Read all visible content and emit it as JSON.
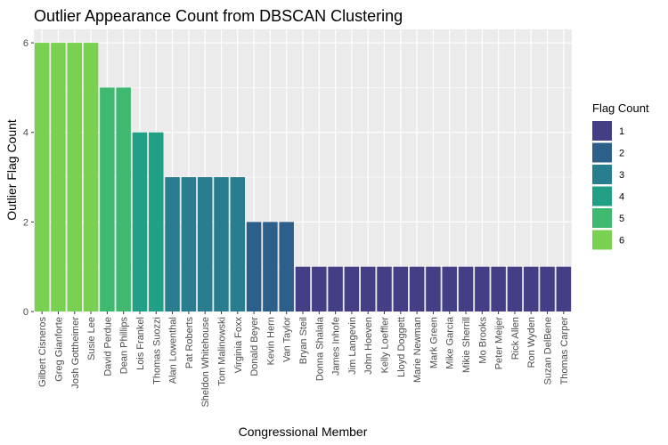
{
  "chart_data": {
    "type": "bar",
    "title": "Outlier Appearance Count from DBSCAN Clustering",
    "xlabel": "Congressional Member",
    "ylabel": "Outlier Flag Count",
    "ylim": [
      0,
      6.3
    ],
    "yticks": [
      0,
      2,
      4,
      6
    ],
    "grid": true,
    "legend_position": "right",
    "categories": [
      "Gilbert Cisneros",
      "Greg Gianforte",
      "Josh Gottheimer",
      "Susie Lee",
      "David Perdue",
      "Dean Phillips",
      "Lois Frankel",
      "Thomas Suozzi",
      "Alan Lowenthal",
      "Pat Roberts",
      "Sheldon Whitehouse",
      "Tom Malinowski",
      "Virginia Foxx",
      "Donald Beyer",
      "Kevin Hern",
      "Van Taylor",
      "Bryan Steil",
      "Donna Shalala",
      "James Inhofe",
      "Jim Langevin",
      "John Hoeven",
      "Kelly Loeffler",
      "Lloyd Doggett",
      "Marie Newman",
      "Mark Green",
      "Mike Garcia",
      "Mikie Sherrill",
      "Mo Brooks",
      "Peter Meijer",
      "Rick Allen",
      "Ron Wyden",
      "Suzan DelBene",
      "Thomas Carper"
    ],
    "values": [
      6,
      6,
      6,
      6,
      5,
      5,
      4,
      4,
      3,
      3,
      3,
      3,
      3,
      2,
      2,
      2,
      1,
      1,
      1,
      1,
      1,
      1,
      1,
      1,
      1,
      1,
      1,
      1,
      1,
      1,
      1,
      1,
      1
    ],
    "legend": {
      "title": "Flag Count",
      "items": [
        {
          "label": "1",
          "color": "#433e85"
        },
        {
          "label": "2",
          "color": "#2c5f8a"
        },
        {
          "label": "3",
          "color": "#287d8e"
        },
        {
          "label": "4",
          "color": "#21a086"
        },
        {
          "label": "5",
          "color": "#3eb96f"
        },
        {
          "label": "6",
          "color": "#7ad151"
        }
      ]
    },
    "colors": {
      "panel_background": "#ebebeb",
      "grid_line": "#ffffff"
    }
  }
}
